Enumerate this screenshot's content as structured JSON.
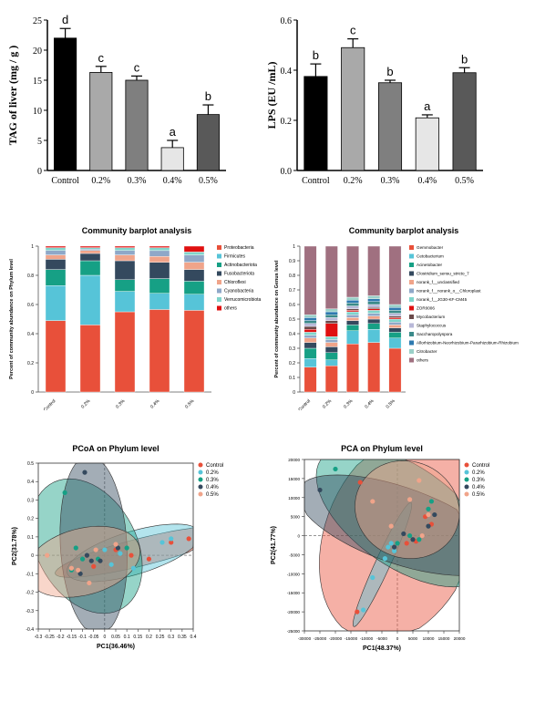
{
  "chart_data": [
    {
      "type": "bar",
      "ylabel": "TAG of liver (mg / g )",
      "categories": [
        "Control",
        "0.2%",
        "0.3%",
        "0.4%",
        "0.5%"
      ],
      "values": [
        22.0,
        16.3,
        15.0,
        3.8,
        9.3
      ],
      "errors": [
        1.6,
        1.0,
        0.7,
        1.2,
        1.6
      ],
      "letters": [
        "d",
        "c",
        "c",
        "a",
        "b"
      ],
      "ylim": [
        0,
        25
      ],
      "yticks": [
        "0",
        "5",
        "10",
        "15",
        "20",
        "25"
      ],
      "colors": [
        "#000000",
        "#a9a9a9",
        "#7f7f7f",
        "#e6e6e6",
        "#595959"
      ]
    },
    {
      "type": "bar",
      "ylabel": "LPS (EU /mL)",
      "categories": [
        "Control",
        "0.2%",
        "0.3%",
        "0.4%",
        "0.5%"
      ],
      "values": [
        0.375,
        0.49,
        0.35,
        0.21,
        0.39
      ],
      "errors": [
        0.05,
        0.035,
        0.01,
        0.012,
        0.02
      ],
      "letters": [
        "b",
        "c",
        "b",
        "a",
        "b"
      ],
      "ylim": [
        0,
        0.6
      ],
      "yticks": [
        "0.0",
        "0.2",
        "0.4",
        "0.6"
      ],
      "colors": [
        "#000000",
        "#a9a9a9",
        "#7f7f7f",
        "#e6e6e6",
        "#595959"
      ]
    },
    {
      "type": "bar",
      "stacked": true,
      "title": "Community barplot analysis",
      "ylabel": "Percent of community abundance on Phylum level",
      "categories": [
        "Control",
        "0.2%",
        "0.3%",
        "0.4%",
        "0.5%"
      ],
      "yticks": [
        "0",
        "0.2",
        "0.4",
        "0.6",
        "0.8",
        "1"
      ],
      "ylim": [
        0,
        1
      ],
      "series": [
        {
          "name": "Proteobacteria",
          "color": "#e8503a",
          "values": [
            0.49,
            0.46,
            0.55,
            0.56,
            0.56
          ]
        },
        {
          "name": "Firmicutes",
          "color": "#56c4d8",
          "values": [
            0.24,
            0.34,
            0.14,
            0.11,
            0.11
          ]
        },
        {
          "name": "Actinobacteriota",
          "color": "#16a085",
          "values": [
            0.11,
            0.1,
            0.08,
            0.1,
            0.09
          ]
        },
        {
          "name": "Fusobacteriota",
          "color": "#34495e",
          "values": [
            0.07,
            0.05,
            0.13,
            0.11,
            0.08
          ]
        },
        {
          "name": "Chloroflexi",
          "color": "#f0a48a",
          "values": [
            0.03,
            0.02,
            0.04,
            0.04,
            0.05
          ]
        },
        {
          "name": "Cyanobacteria",
          "color": "#8fa8c8",
          "values": [
            0.03,
            0.01,
            0.03,
            0.04,
            0.05
          ]
        },
        {
          "name": "Verrucomicrobiota",
          "color": "#7fd4cb",
          "values": [
            0.02,
            0.01,
            0.02,
            0.02,
            0.02
          ]
        },
        {
          "name": "others",
          "color": "#e01010",
          "values": [
            0.01,
            0.01,
            0.01,
            0.01,
            0.04
          ]
        }
      ]
    },
    {
      "type": "bar",
      "stacked": true,
      "title": "Community barplot analysis",
      "ylabel": "Percent of community abundance on Genus level",
      "categories": [
        "Control",
        "0.2%",
        "0.3%",
        "0.4%",
        "0.5%"
      ],
      "yticks": [
        "0",
        "0.1",
        "0.2",
        "0.3",
        "0.4",
        "0.5",
        "0.6",
        "0.7",
        "0.8",
        "0.9",
        "1"
      ],
      "ylim": [
        0,
        1
      ],
      "series": [
        {
          "name": "Gemmobacter",
          "color": "#e8503a",
          "values": [
            0.17,
            0.18,
            0.33,
            0.34,
            0.3
          ]
        },
        {
          "name": "Cetobacterium",
          "color": "#56c4d8",
          "values": [
            0.06,
            0.04,
            0.09,
            0.09,
            0.07
          ]
        },
        {
          "name": "Acinetobacter",
          "color": "#16a085",
          "values": [
            0.07,
            0.05,
            0.04,
            0.04,
            0.04
          ]
        },
        {
          "name": "Clostridium_sensu_stricto_7",
          "color": "#34495e",
          "values": [
            0.04,
            0.04,
            0.03,
            0.03,
            0.03
          ]
        },
        {
          "name": "norank_f__unclassified",
          "color": "#f0a48a",
          "values": [
            0.03,
            0.03,
            0.02,
            0.02,
            0.02
          ]
        },
        {
          "name": "norank_f__norank_o__Chloroplast",
          "color": "#8fa8c8",
          "values": [
            0.02,
            0.02,
            0.02,
            0.02,
            0.02
          ]
        },
        {
          "name": "norank_f__JG30-KF-CM45",
          "color": "#7fd4cb",
          "values": [
            0.02,
            0.02,
            0.02,
            0.02,
            0.02
          ]
        },
        {
          "name": "ZOR0006",
          "color": "#e01010",
          "values": [
            0.02,
            0.09,
            0.01,
            0.01,
            0.01
          ]
        },
        {
          "name": "Mycobacterium",
          "color": "#6b4a4a",
          "values": [
            0.02,
            0.02,
            0.01,
            0.01,
            0.01
          ]
        },
        {
          "name": "Staphylococcus",
          "color": "#b8b8d8",
          "values": [
            0.02,
            0.02,
            0.02,
            0.02,
            0.02
          ]
        },
        {
          "name": "Saccharopolyspora",
          "color": "#3b8a8a",
          "values": [
            0.02,
            0.02,
            0.02,
            0.02,
            0.02
          ]
        },
        {
          "name": "Allorhizobium-Neorhizobium-Pararhizobium-Rhizobium",
          "color": "#2e7ab0",
          "values": [
            0.02,
            0.02,
            0.02,
            0.02,
            0.02
          ]
        },
        {
          "name": "Citrobacter",
          "color": "#9ad0c8",
          "values": [
            0.02,
            0.02,
            0.02,
            0.02,
            0.02
          ]
        },
        {
          "name": "others",
          "color": "#a07080",
          "values": [
            0.47,
            0.43,
            0.35,
            0.34,
            0.4
          ]
        }
      ]
    },
    {
      "type": "scatter",
      "title": "PCoA on Phylum level",
      "xlabel": "PC1(36.46%)",
      "ylabel": "PC2(31.78%)",
      "xlim": [
        -0.3,
        0.4
      ],
      "ylim": [
        -0.4,
        0.5
      ],
      "xticks": [
        "-0.3",
        "-0.25",
        "-0.2",
        "-0.15",
        "-0.1",
        "-0.05",
        "0",
        "0.05",
        "0.1",
        "0.15",
        "0.2",
        "0.25",
        "0.3",
        "0.35",
        "0.4"
      ],
      "yticks": [
        "-0.4",
        "-0.3",
        "-0.2",
        "-0.1",
        "0",
        "0.1",
        "0.2",
        "0.3",
        "0.4",
        "0.5"
      ],
      "series": [
        {
          "name": "Control",
          "color": "#e8503a",
          "points": [
            [
              0.38,
              0.09
            ],
            [
              0.12,
              0.0
            ],
            [
              0.05,
              0.03
            ],
            [
              -0.05,
              -0.06
            ],
            [
              0.2,
              -0.02
            ],
            [
              0.3,
              0.07
            ]
          ]
        },
        {
          "name": "0.2%",
          "color": "#56c4d8",
          "points": [
            [
              0.3,
              0.09
            ],
            [
              0.26,
              0.07
            ],
            [
              0.07,
              0.01
            ],
            [
              0.0,
              0.03
            ],
            [
              0.03,
              -0.05
            ],
            [
              0.13,
              -0.07
            ]
          ]
        },
        {
          "name": "0.3%",
          "color": "#16a085",
          "points": [
            [
              -0.18,
              0.34
            ],
            [
              -0.13,
              0.04
            ],
            [
              -0.15,
              -0.08
            ],
            [
              -0.03,
              -0.02
            ],
            [
              -0.1,
              -0.02
            ],
            [
              0.1,
              0.04
            ]
          ]
        },
        {
          "name": "0.4%",
          "color": "#34495e",
          "points": [
            [
              -0.09,
              0.45
            ],
            [
              -0.06,
              -0.03
            ],
            [
              -0.11,
              -0.1
            ],
            [
              -0.02,
              -0.03
            ],
            [
              0.06,
              0.04
            ],
            [
              -0.08,
              0.0
            ]
          ]
        },
        {
          "name": "0.5%",
          "color": "#f0a48a",
          "points": [
            [
              -0.26,
              0.0
            ],
            [
              -0.07,
              -0.15
            ],
            [
              -0.12,
              -0.08
            ],
            [
              0.05,
              0.06
            ],
            [
              -0.15,
              -0.07
            ],
            [
              -0.04,
              0.03
            ]
          ]
        }
      ]
    },
    {
      "type": "scatter",
      "title": "PCA on Phylum level",
      "xlabel": "PC1(48.37%)",
      "ylabel": "PC2(41.77%)",
      "xlim": [
        -30000,
        20000
      ],
      "ylim": [
        -25000,
        20000
      ],
      "xticks": [
        "-30000",
        "-25000",
        "-20000",
        "-15000",
        "-10000",
        "-5000",
        "0",
        "5000",
        "10000",
        "15000",
        "20000"
      ],
      "yticks": [
        "-25000",
        "-20000",
        "-15000",
        "-10000",
        "-5000",
        "0",
        "5000",
        "10000",
        "15000",
        "20000"
      ],
      "series": [
        {
          "name": "Control",
          "color": "#e8503a",
          "points": [
            [
              -13000,
              -20000
            ],
            [
              -12000,
              14000
            ],
            [
              9000,
              5000
            ],
            [
              3000,
              -2000
            ],
            [
              6000,
              -1500
            ],
            [
              11000,
              3000
            ]
          ]
        },
        {
          "name": "0.2%",
          "color": "#56c4d8",
          "points": [
            [
              -11000,
              -19500
            ],
            [
              -8000,
              -11000
            ],
            [
              -4000,
              -6000
            ],
            [
              -3000,
              -3000
            ],
            [
              -1000,
              -4000
            ],
            [
              -2000,
              -2000
            ]
          ]
        },
        {
          "name": "0.3%",
          "color": "#16a085",
          "points": [
            [
              -20000,
              17500
            ],
            [
              11000,
              9000
            ],
            [
              4000,
              0
            ],
            [
              7000,
              -1000
            ],
            [
              0,
              -2000
            ],
            [
              10000,
              7000
            ]
          ]
        },
        {
          "name": "0.4%",
          "color": "#34495e",
          "points": [
            [
              -25000,
              12000
            ],
            [
              12000,
              5500
            ],
            [
              2000,
              500
            ],
            [
              -1000,
              -3000
            ],
            [
              5000,
              -1000
            ],
            [
              10000,
              2500
            ]
          ]
        },
        {
          "name": "0.5%",
          "color": "#f0a48a",
          "points": [
            [
              -8000,
              9000
            ],
            [
              7000,
              14500
            ],
            [
              10000,
              5500
            ],
            [
              4000,
              9500
            ],
            [
              -2000,
              2500
            ],
            [
              8000,
              0
            ]
          ]
        }
      ]
    }
  ]
}
